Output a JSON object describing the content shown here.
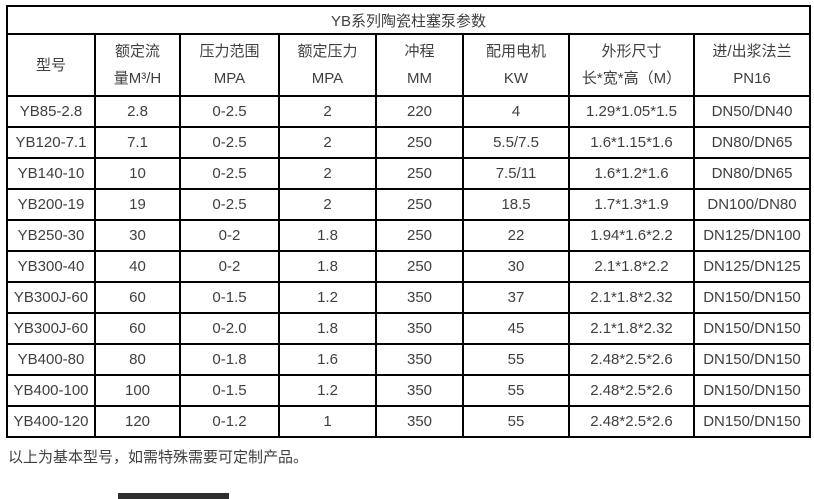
{
  "title": "YB系列陶瓷柱塞泵参数",
  "table": {
    "columns": [
      {
        "line1": "型号",
        "line2": ""
      },
      {
        "line1": "额定流",
        "line2": "量M³/H"
      },
      {
        "line1": "压力范围",
        "line2": "MPA"
      },
      {
        "line1": "额定压力",
        "line2": "MPA"
      },
      {
        "line1": "冲程",
        "line2": "MM"
      },
      {
        "line1": "配用电机",
        "line2": "KW"
      },
      {
        "line1": "外形尺寸",
        "line2": "长*宽*高（M）"
      },
      {
        "line1": "进/出浆法兰",
        "line2": "PN16"
      }
    ],
    "rows": [
      [
        "YB85-2.8",
        "2.8",
        "0-2.5",
        "2",
        "220",
        "4",
        "1.29*1.05*1.5",
        "DN50/DN40"
      ],
      [
        "YB120-7.1",
        "7.1",
        "0-2.5",
        "2",
        "250",
        "5.5/7.5",
        "1.6*1.15*1.6",
        "DN80/DN65"
      ],
      [
        "YB140-10",
        "10",
        "0-2.5",
        "2",
        "250",
        "7.5/11",
        "1.6*1.2*1.6",
        "DN80/DN65"
      ],
      [
        "YB200-19",
        "19",
        "0-2.5",
        "2",
        "250",
        "18.5",
        "1.7*1.3*1.9",
        "DN100/DN80"
      ],
      [
        "YB250-30",
        "30",
        "0-2",
        "1.8",
        "250",
        "22",
        "1.94*1.6*2.2",
        "DN125/DN100"
      ],
      [
        "YB300-40",
        "40",
        "0-2",
        "1.8",
        "250",
        "30",
        "2.1*1.8*2.2",
        "DN125/DN125"
      ],
      [
        "YB300J-60",
        "60",
        "0-1.5",
        "1.2",
        "350",
        "37",
        "2.1*1.8*2.32",
        "DN150/DN150"
      ],
      [
        "YB300J-60",
        "60",
        "0-2.0",
        "1.8",
        "350",
        "45",
        "2.1*1.8*2.32",
        "DN150/DN150"
      ],
      [
        "YB400-80",
        "80",
        "0-1.8",
        "1.6",
        "350",
        "55",
        "2.48*2.5*2.6",
        "DN150/DN150"
      ],
      [
        "YB400-100",
        "100",
        "0-1.5",
        "1.2",
        "350",
        "55",
        "2.48*2.5*2.6",
        "DN150/DN150"
      ],
      [
        "YB400-120",
        "120",
        "0-1.2",
        "1",
        "350",
        "55",
        "2.48*2.5*2.6",
        "DN150/DN150"
      ]
    ]
  },
  "footnote": "以上为基本型号，如需特殊需要可定制产品。",
  "colors": {
    "border": "#000000",
    "text": "#404040",
    "background": "#ffffff",
    "bottom_bar": "#2f2f2f"
  }
}
